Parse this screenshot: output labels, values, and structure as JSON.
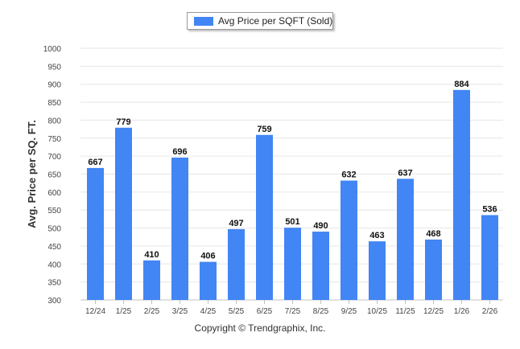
{
  "chart_data": {
    "type": "bar",
    "categories": [
      "12/24",
      "1/25",
      "2/25",
      "3/25",
      "4/25",
      "5/25",
      "6/25",
      "7/25",
      "8/25",
      "9/25",
      "10/25",
      "11/25",
      "12/25",
      "1/26",
      "2/26"
    ],
    "series": [
      {
        "name": "Avg Price per SQFT (Sold)",
        "values": [
          667,
          779,
          410,
          696,
          406,
          497,
          759,
          501,
          490,
          632,
          463,
          637,
          468,
          884,
          536
        ]
      }
    ],
    "ylabel": "Avg. Price per SQ. FT.",
    "xlabel": "",
    "ylim": [
      300,
      1000
    ],
    "yticks": [
      300,
      350,
      400,
      450,
      500,
      550,
      600,
      650,
      700,
      750,
      800,
      850,
      900,
      950,
      1000
    ],
    "grid": true,
    "legend": "top-center",
    "bar_color": "#4285f4"
  },
  "footer": "Copyright © Trendgraphix, Inc."
}
